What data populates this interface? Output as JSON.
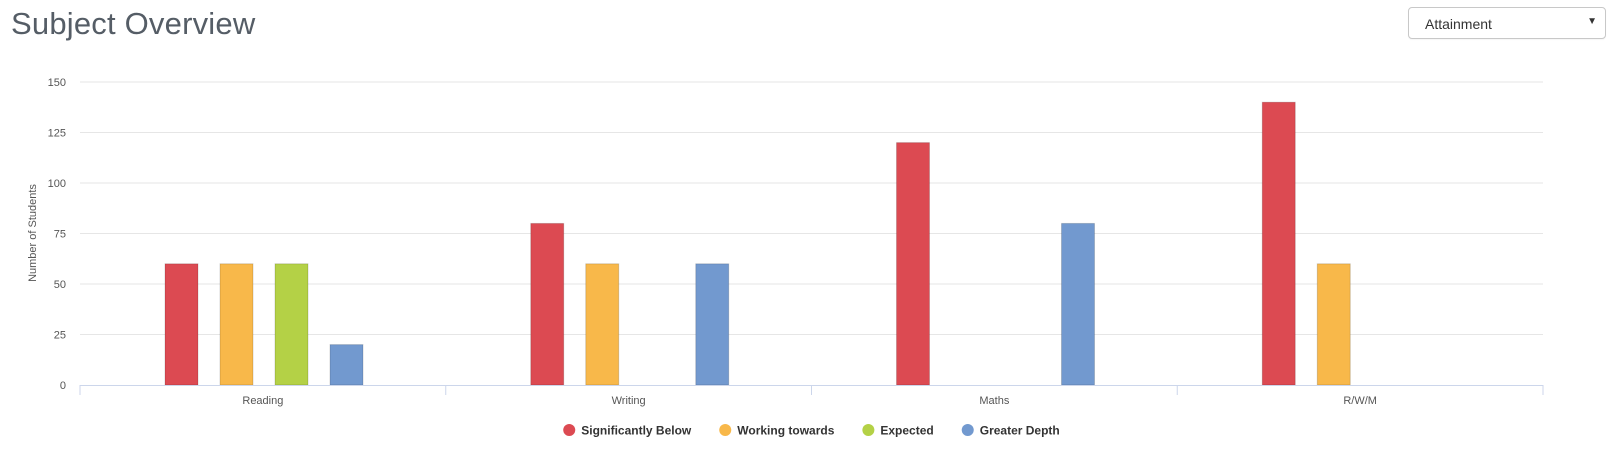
{
  "header": {
    "title": "Subject Overview"
  },
  "view_select": {
    "value": "Attainment"
  },
  "colors": {
    "significantly_below": "#dc4a52",
    "working_towards": "#f8b84a",
    "expected": "#b4d146",
    "greater_depth": "#7299cf"
  },
  "chart_data": {
    "type": "bar",
    "categories": [
      "Reading",
      "Writing",
      "Maths",
      "R/W/M"
    ],
    "series": [
      {
        "name": "Significantly Below",
        "color": "#dc4a52",
        "values": [
          60,
          80,
          120,
          140
        ]
      },
      {
        "name": "Working towards",
        "color": "#f8b84a",
        "values": [
          60,
          60,
          0,
          60
        ]
      },
      {
        "name": "Expected",
        "color": "#b4d146",
        "values": [
          60,
          0,
          0,
          0
        ]
      },
      {
        "name": "Greater Depth",
        "color": "#7299cf",
        "values": [
          20,
          60,
          80,
          0
        ]
      }
    ],
    "ylabel": "Number of Students",
    "xlabel": "",
    "ylim": [
      0,
      150
    ],
    "yticks": [
      0,
      25,
      50,
      75,
      100,
      125,
      150
    ],
    "grid": true,
    "legend_position": "bottom-center"
  }
}
